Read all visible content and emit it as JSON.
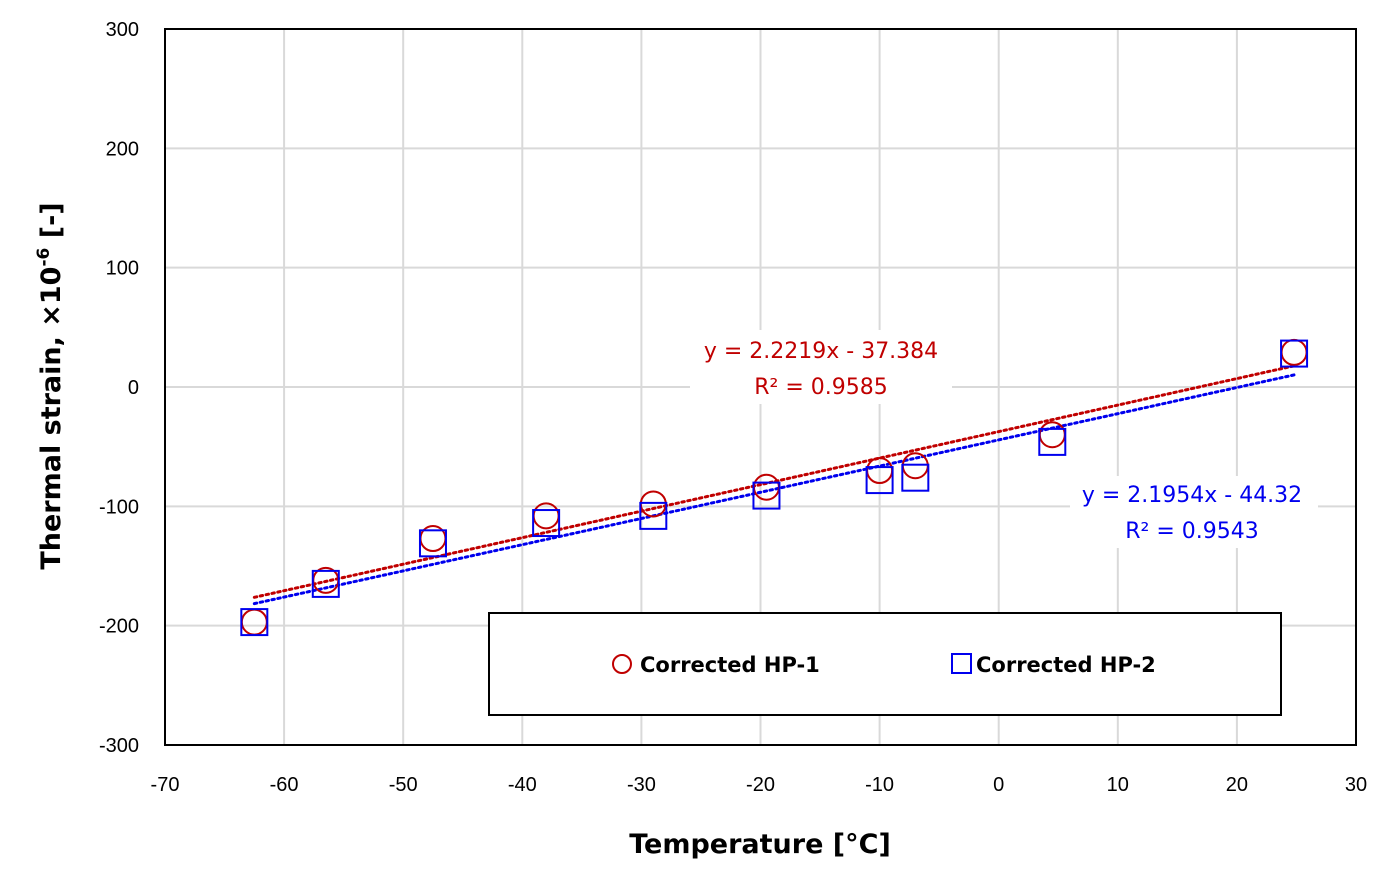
{
  "chart_data": {
    "type": "scatter",
    "xlabel": "Temperature [°C]",
    "ylabel_main": "Thermal strain,  ×10",
    "ylabel_sup": "-6",
    "ylabel_tail": " [-]",
    "xlim": [
      -70,
      30
    ],
    "ylim": [
      -300,
      300
    ],
    "xticks": [
      -70,
      -60,
      -50,
      -40,
      -30,
      -20,
      -10,
      0,
      10,
      20,
      30
    ],
    "yticks": [
      -300,
      -200,
      -100,
      0,
      100,
      200,
      300
    ],
    "grid": true,
    "legend_position": "bottom-right",
    "series": [
      {
        "name": "Corrected HP-1",
        "marker": "circle",
        "color": "#c00000",
        "points": [
          {
            "x": -62.5,
            "y": -197
          },
          {
            "x": -56.5,
            "y": -162
          },
          {
            "x": -47.5,
            "y": -127
          },
          {
            "x": -38,
            "y": -108
          },
          {
            "x": -29,
            "y": -98
          },
          {
            "x": -19.5,
            "y": -84
          },
          {
            "x": -10,
            "y": -70
          },
          {
            "x": -7,
            "y": -66
          },
          {
            "x": 4.5,
            "y": -40
          },
          {
            "x": 24.8,
            "y": 29
          }
        ],
        "trendline": {
          "slope": 2.2219,
          "intercept": -37.384,
          "x_range": [
            -62.5,
            24.8
          ]
        },
        "equation": "y = 2.2219x - 37.384",
        "r2": "R² = 0.9585"
      },
      {
        "name": "Corrected HP-2",
        "marker": "square",
        "color": "#0000ee",
        "points": [
          {
            "x": -62.5,
            "y": -197
          },
          {
            "x": -56.5,
            "y": -165
          },
          {
            "x": -47.5,
            "y": -131
          },
          {
            "x": -38,
            "y": -114
          },
          {
            "x": -29,
            "y": -108
          },
          {
            "x": -19.5,
            "y": -91
          },
          {
            "x": -10,
            "y": -78
          },
          {
            "x": -7,
            "y": -76
          },
          {
            "x": 4.5,
            "y": -46
          },
          {
            "x": 24.8,
            "y": 28
          }
        ],
        "trendline": {
          "slope": 2.1954,
          "intercept": -44.32,
          "x_range": [
            -62.5,
            24.8
          ]
        },
        "equation": "y = 2.1954x - 44.32",
        "r2": "R² = 0.9543"
      }
    ]
  }
}
